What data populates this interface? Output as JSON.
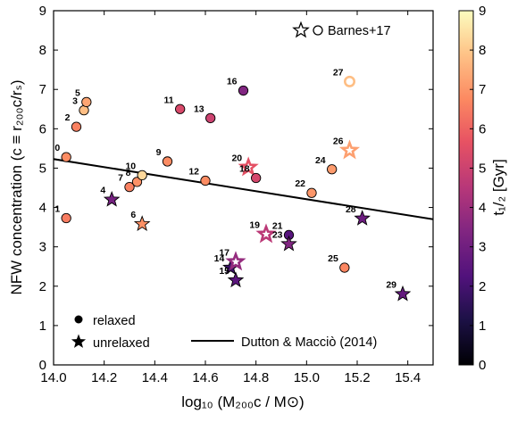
{
  "chart_data": {
    "type": "scatter",
    "xlabel": "log₁₀ (M₂₀₀c / M⊙)",
    "ylabel": "NFW concentration (c ≡ r₂₀₀c/rₛ)",
    "xlim": [
      14.0,
      15.5
    ],
    "ylim": [
      0,
      9
    ],
    "xticks": [
      "14.0",
      "14.2",
      "14.4",
      "14.6",
      "14.8",
      "15.0",
      "15.2",
      "15.4"
    ],
    "yticks": [
      "0",
      "1",
      "2",
      "3",
      "4",
      "5",
      "6",
      "7",
      "8",
      "9"
    ],
    "grid": false,
    "colorbar": {
      "label": "t₁/₂ [Gyr]",
      "range": [
        0,
        9
      ],
      "ticks": [
        "0",
        "1",
        "2",
        "3",
        "4",
        "5",
        "6",
        "7",
        "8",
        "9"
      ],
      "colormap": "magma"
    },
    "fit_line": {
      "name": "Dutton & Macciò (2014)",
      "x": [
        14.0,
        15.5
      ],
      "y": [
        5.23,
        3.7
      ]
    },
    "legend": {
      "placement": "bottom",
      "relaxed": "relaxed",
      "unrelaxed": "unrelaxed",
      "barnes": "Barnes+17"
    },
    "points": [
      {
        "id": "0",
        "x": 14.05,
        "y": 5.28,
        "marker": "circle",
        "filled": true,
        "t": 6.8
      },
      {
        "id": "1",
        "x": 14.05,
        "y": 3.73,
        "marker": "circle",
        "filled": true,
        "t": 6.5
      },
      {
        "id": "2",
        "x": 14.09,
        "y": 6.05,
        "marker": "circle",
        "filled": true,
        "t": 6.6
      },
      {
        "id": "3",
        "x": 14.12,
        "y": 6.47,
        "marker": "circle",
        "filled": true,
        "t": 7.8
      },
      {
        "id": "5",
        "x": 14.13,
        "y": 6.68,
        "marker": "circle",
        "filled": true,
        "t": 7.3
      },
      {
        "id": "4",
        "x": 14.23,
        "y": 4.2,
        "marker": "star",
        "filled": true,
        "t": 3.1
      },
      {
        "id": "7",
        "x": 14.3,
        "y": 4.52,
        "marker": "circle",
        "filled": true,
        "t": 6.6
      },
      {
        "id": "8",
        "x": 14.33,
        "y": 4.65,
        "marker": "circle",
        "filled": true,
        "t": 6.9
      },
      {
        "id": "10",
        "x": 14.35,
        "y": 4.82,
        "marker": "circle",
        "filled": true,
        "t": 8.3
      },
      {
        "id": "6",
        "x": 14.35,
        "y": 3.58,
        "marker": "star",
        "filled": true,
        "t": 6.9
      },
      {
        "id": "9",
        "x": 14.45,
        "y": 5.17,
        "marker": "circle",
        "filled": true,
        "t": 6.8
      },
      {
        "id": "11",
        "x": 14.5,
        "y": 6.5,
        "marker": "circle",
        "filled": true,
        "t": 5.3
      },
      {
        "id": "12",
        "x": 14.6,
        "y": 4.68,
        "marker": "circle",
        "filled": true,
        "t": 6.8
      },
      {
        "id": "13",
        "x": 14.62,
        "y": 6.27,
        "marker": "circle",
        "filled": true,
        "t": 5.0
      },
      {
        "id": "14",
        "x": 14.7,
        "y": 2.47,
        "marker": "star",
        "filled": true,
        "t": 1.8
      },
      {
        "id": "15",
        "x": 14.72,
        "y": 2.15,
        "marker": "star",
        "filled": true,
        "t": 2.5
      },
      {
        "id": "17",
        "x": 14.72,
        "y": 2.62,
        "marker": "star",
        "filled": false,
        "t": 3.8
      },
      {
        "id": "16",
        "x": 14.75,
        "y": 6.97,
        "marker": "circle",
        "filled": true,
        "t": 3.4
      },
      {
        "id": "20",
        "x": 14.77,
        "y": 5.02,
        "marker": "star",
        "filled": false,
        "t": 5.6
      },
      {
        "id": "18",
        "x": 14.8,
        "y": 4.75,
        "marker": "circle",
        "filled": true,
        "t": 5.2
      },
      {
        "id": "19",
        "x": 14.84,
        "y": 3.32,
        "marker": "star",
        "filled": false,
        "t": 4.6
      },
      {
        "id": "21",
        "x": 14.93,
        "y": 3.3,
        "marker": "circle",
        "filled": true,
        "t": 2.4
      },
      {
        "id": "23",
        "x": 14.93,
        "y": 3.07,
        "marker": "star",
        "filled": true,
        "t": 3.4
      },
      {
        "id": "22",
        "x": 15.02,
        "y": 4.37,
        "marker": "circle",
        "filled": true,
        "t": 7.0
      },
      {
        "id": "24",
        "x": 15.1,
        "y": 4.97,
        "marker": "circle",
        "filled": true,
        "t": 7.1
      },
      {
        "id": "25",
        "x": 15.15,
        "y": 2.47,
        "marker": "circle",
        "filled": true,
        "t": 6.7
      },
      {
        "id": "26",
        "x": 15.17,
        "y": 5.45,
        "marker": "star",
        "filled": false,
        "t": 7.2
      },
      {
        "id": "27",
        "x": 15.17,
        "y": 7.2,
        "marker": "circle",
        "filled": false,
        "t": 7.8
      },
      {
        "id": "28",
        "x": 15.22,
        "y": 3.72,
        "marker": "star",
        "filled": true,
        "t": 2.9
      },
      {
        "id": "29",
        "x": 15.38,
        "y": 1.8,
        "marker": "star",
        "filled": true,
        "t": 2.7
      }
    ]
  }
}
